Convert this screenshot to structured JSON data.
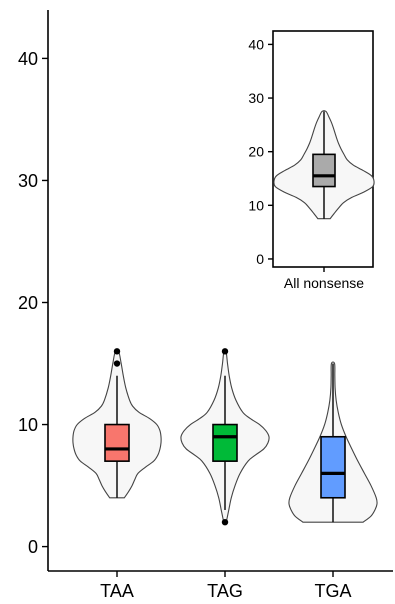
{
  "chart_data": [
    {
      "type": "violin",
      "categories": [
        "TAA",
        "TAG",
        "TGA"
      ],
      "ylim": [
        -2,
        42
      ],
      "yticks": [
        0,
        10,
        20,
        30,
        40
      ],
      "series": [
        {
          "name": "TAA",
          "color": "#f8766d",
          "q1": 7,
          "median": 8,
          "q3": 10,
          "whisker_low": 4,
          "whisker_high": 14,
          "outliers": [
            15,
            16
          ],
          "density": [
            [
              4,
              0.35
            ],
            [
              4.5,
              0.55
            ],
            [
              5,
              0.72
            ],
            [
              5.5,
              0.85
            ],
            [
              6,
              1.0
            ],
            [
              6.5,
              1.35
            ],
            [
              7,
              1.75
            ],
            [
              7.5,
              1.95
            ],
            [
              8,
              2.05
            ],
            [
              8.5,
              2.1
            ],
            [
              9,
              2.1
            ],
            [
              9.5,
              2.05
            ],
            [
              10,
              1.9
            ],
            [
              10.5,
              1.55
            ],
            [
              11,
              1.05
            ],
            [
              11.5,
              0.75
            ],
            [
              12,
              0.6
            ],
            [
              13,
              0.42
            ],
            [
              14,
              0.3
            ],
            [
              15,
              0.2
            ],
            [
              16,
              0.08
            ]
          ]
        },
        {
          "name": "TAG",
          "color": "#00ba38",
          "q1": 7,
          "median": 9,
          "q3": 10,
          "whisker_low": 3,
          "whisker_high": 14,
          "outliers": [
            2,
            16
          ],
          "density": [
            [
              2,
              0.06
            ],
            [
              3,
              0.18
            ],
            [
              4,
              0.3
            ],
            [
              5,
              0.48
            ],
            [
              6,
              0.72
            ],
            [
              7,
              1.1
            ],
            [
              7.5,
              1.45
            ],
            [
              8,
              1.85
            ],
            [
              8.5,
              2.05
            ],
            [
              9,
              2.1
            ],
            [
              9.5,
              1.95
            ],
            [
              10,
              1.65
            ],
            [
              10.5,
              1.2
            ],
            [
              11,
              0.85
            ],
            [
              12,
              0.52
            ],
            [
              13,
              0.32
            ],
            [
              14,
              0.2
            ],
            [
              15,
              0.12
            ],
            [
              16,
              0.05
            ]
          ]
        },
        {
          "name": "TGA",
          "color": "#619cff",
          "q1": 4,
          "median": 6,
          "q3": 9,
          "whisker_low": 2,
          "whisker_high": 15,
          "outliers": [],
          "density": [
            [
              2,
              1.15
            ],
            [
              2.5,
              1.45
            ],
            [
              3,
              1.6
            ],
            [
              3.5,
              1.68
            ],
            [
              4,
              1.65
            ],
            [
              5,
              1.45
            ],
            [
              6,
              1.2
            ],
            [
              7,
              0.95
            ],
            [
              8,
              0.72
            ],
            [
              9,
              0.5
            ],
            [
              10,
              0.32
            ],
            [
              11,
              0.2
            ],
            [
              12,
              0.12
            ],
            [
              13,
              0.08
            ],
            [
              14,
              0.07
            ],
            [
              15,
              0.06
            ]
          ]
        }
      ]
    },
    {
      "type": "violin",
      "categories": [
        "All nonsense"
      ],
      "ylim": [
        -1.5,
        42.5
      ],
      "yticks": [
        0,
        10,
        20,
        30,
        40
      ],
      "series": [
        {
          "name": "All nonsense",
          "color": "#aaaaaa",
          "q1": 13.5,
          "median": 15.5,
          "q3": 19.5,
          "whisker_low": 7.5,
          "whisker_high": 27.5,
          "outliers": [],
          "density": [
            [
              7.5,
              0.25
            ],
            [
              8.5,
              0.42
            ],
            [
              9.5,
              0.6
            ],
            [
              10.5,
              0.8
            ],
            [
              11.5,
              1.15
            ],
            [
              12.5,
              1.65
            ],
            [
              13.5,
              2.0
            ],
            [
              14.5,
              2.05
            ],
            [
              15.5,
              1.95
            ],
            [
              16.5,
              1.6
            ],
            [
              17.5,
              1.2
            ],
            [
              18.5,
              0.95
            ],
            [
              19.5,
              0.82
            ],
            [
              20.5,
              0.7
            ],
            [
              21.5,
              0.6
            ],
            [
              22.5,
              0.52
            ],
            [
              23.5,
              0.45
            ],
            [
              24.5,
              0.38
            ],
            [
              25.5,
              0.3
            ],
            [
              26.5,
              0.2
            ],
            [
              27.5,
              0.08
            ]
          ]
        }
      ]
    }
  ]
}
